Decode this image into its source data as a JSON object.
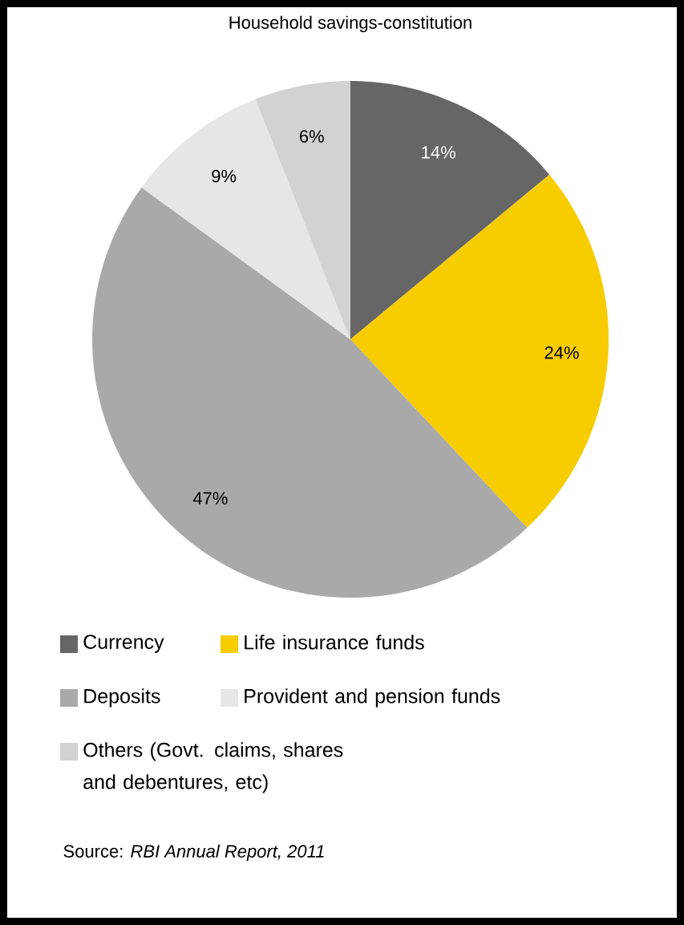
{
  "chart_data": {
    "type": "pie",
    "title": "Household savings-constitution",
    "categories": [
      "Currency",
      "Life insurance funds",
      "Deposits",
      "Provident and pension funds",
      "Others (Govt. claims, shares and debentures, etc)"
    ],
    "values": [
      14,
      24,
      47,
      9,
      6
    ],
    "colors": [
      "#666666",
      "#f7cc00",
      "#a9a9a9",
      "#e6e6e6",
      "#d2d2d2"
    ],
    "value_labels": [
      "14%",
      "24%",
      "47%",
      "9%",
      "6%"
    ],
    "legend": "bottom",
    "annotations": [
      "Source: *RBI Annual Report, 2011*"
    ]
  }
}
